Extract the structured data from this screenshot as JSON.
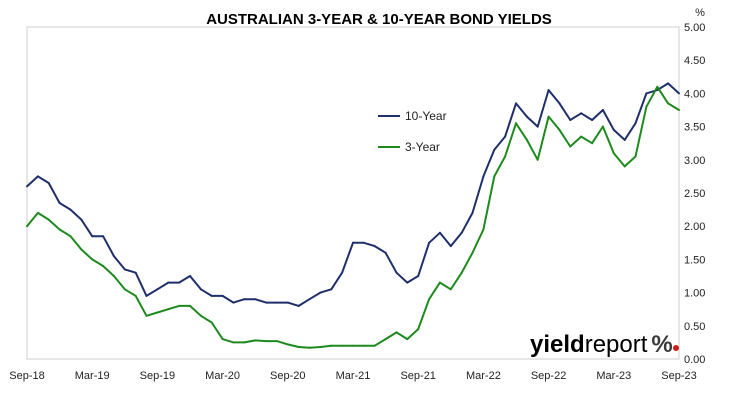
{
  "chart_data": {
    "type": "line",
    "title": "AUSTRALIAN 3-YEAR & 10-YEAR BOND YIELDS",
    "ylabel": "%",
    "ylim": [
      0,
      5
    ],
    "yticks": [
      "0.00",
      "0.50",
      "1.00",
      "1.50",
      "2.00",
      "2.50",
      "3.00",
      "3.50",
      "4.00",
      "4.50",
      "5.00"
    ],
    "xlim": [
      "2018-09",
      "2023-09"
    ],
    "xticks": [
      "Sep-18",
      "Mar-19",
      "Sep-19",
      "Mar-20",
      "Sep-20",
      "Mar-21",
      "Sep-21",
      "Mar-22",
      "Sep-22",
      "Mar-23",
      "Sep-23"
    ],
    "grid": false,
    "legend_position": "center",
    "x": [
      "2018-09",
      "2018-10",
      "2018-11",
      "2018-12",
      "2019-01",
      "2019-02",
      "2019-03",
      "2019-04",
      "2019-05",
      "2019-06",
      "2019-07",
      "2019-08",
      "2019-09",
      "2019-10",
      "2019-11",
      "2019-12",
      "2020-01",
      "2020-02",
      "2020-03",
      "2020-04",
      "2020-05",
      "2020-06",
      "2020-07",
      "2020-08",
      "2020-09",
      "2020-10",
      "2020-11",
      "2020-12",
      "2021-01",
      "2021-02",
      "2021-03",
      "2021-04",
      "2021-05",
      "2021-06",
      "2021-07",
      "2021-08",
      "2021-09",
      "2021-10",
      "2021-11",
      "2021-12",
      "2022-01",
      "2022-02",
      "2022-03",
      "2022-04",
      "2022-05",
      "2022-06",
      "2022-07",
      "2022-08",
      "2022-09",
      "2022-10",
      "2022-11",
      "2022-12",
      "2023-01",
      "2023-02",
      "2023-03",
      "2023-04",
      "2023-05",
      "2023-06",
      "2023-07",
      "2023-08",
      "2023-09"
    ],
    "series": [
      {
        "name": "10-Year",
        "color": "#1f2f6b",
        "values": [
          2.6,
          2.75,
          2.65,
          2.35,
          2.25,
          2.1,
          1.85,
          1.85,
          1.55,
          1.35,
          1.3,
          0.95,
          1.05,
          1.15,
          1.15,
          1.25,
          1.05,
          0.95,
          0.95,
          0.85,
          0.9,
          0.9,
          0.85,
          0.85,
          0.85,
          0.8,
          0.9,
          1.0,
          1.05,
          1.3,
          1.75,
          1.75,
          1.7,
          1.6,
          1.3,
          1.15,
          1.25,
          1.75,
          1.9,
          1.7,
          1.9,
          2.2,
          2.75,
          3.15,
          3.35,
          3.85,
          3.65,
          3.5,
          4.05,
          3.85,
          3.6,
          3.7,
          3.6,
          3.75,
          3.45,
          3.3,
          3.55,
          4.0,
          4.05,
          4.15,
          4.0
        ]
      },
      {
        "name": "3-Year",
        "color": "#1e8a1e",
        "values": [
          2.0,
          2.2,
          2.1,
          1.95,
          1.85,
          1.65,
          1.5,
          1.4,
          1.25,
          1.05,
          0.95,
          0.65,
          0.7,
          0.75,
          0.8,
          0.8,
          0.65,
          0.55,
          0.3,
          0.25,
          0.25,
          0.28,
          0.27,
          0.27,
          0.22,
          0.18,
          0.17,
          0.18,
          0.2,
          0.2,
          0.2,
          0.2,
          0.2,
          0.3,
          0.4,
          0.3,
          0.45,
          0.9,
          1.15,
          1.05,
          1.3,
          1.6,
          1.95,
          2.75,
          3.05,
          3.55,
          3.3,
          3.0,
          3.65,
          3.45,
          3.2,
          3.35,
          3.25,
          3.5,
          3.1,
          2.9,
          3.05,
          3.8,
          4.1,
          3.85,
          3.75
        ]
      }
    ]
  },
  "logo": {
    "text": "yieldreport %"
  }
}
